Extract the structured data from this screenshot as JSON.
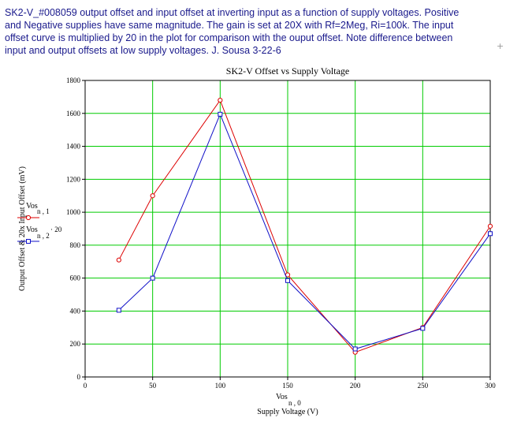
{
  "description": {
    "line1": "SK2-V_#008059 output offset and input offset at inverting input as a function of supply voltages. Positive",
    "line2": "and Negative supplies have same magnitude. The gain is set at 20X with Rf=2Meg, Ri=100k. The input",
    "line3": "offset curve is multiplied by 20 in the plot for comparison with the ouput offset. Note difference between",
    "line4": "input and output offsets at low supply voltages.   J. Sousa 3-22-6"
  },
  "corner_glyph": "+",
  "chart_data": {
    "type": "line",
    "title": "SK2-V Offset vs Supply Voltage",
    "xlabel_top": "Vos",
    "xlabel_sub": "n , 0",
    "xlabel": "Supply Voltage (V)",
    "ylabel": "Output Offset & 20x Input Offset (mV)",
    "xlim": [
      0,
      300
    ],
    "ylim": [
      0,
      1800
    ],
    "xticks": [
      "0",
      "50",
      "100",
      "150",
      "200",
      "250",
      "300"
    ],
    "yticks": [
      "0",
      "200",
      "400",
      "600",
      "800",
      "1000",
      "1200",
      "1400",
      "1600",
      "1800"
    ],
    "grid": true,
    "grid_color": "#00cc00",
    "series": [
      {
        "name": "Vos",
        "name_sub": "n , 1",
        "name_suffix": "",
        "color": "#dd0000",
        "marker": "circle",
        "x": [
          25,
          50,
          100,
          150,
          200,
          250,
          300
        ],
        "values": [
          710,
          1100,
          1680,
          620,
          150,
          300,
          915
        ]
      },
      {
        "name": "Vos",
        "name_sub": "n , 2",
        "name_suffix": "· 20",
        "color": "#1010c8",
        "marker": "square",
        "x": [
          25,
          50,
          100,
          150,
          200,
          250,
          300
        ],
        "values": [
          405,
          600,
          1595,
          585,
          170,
          295,
          870
        ]
      }
    ]
  }
}
